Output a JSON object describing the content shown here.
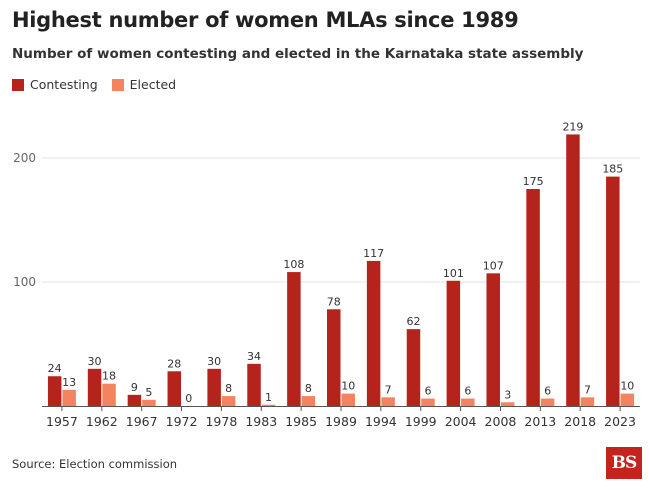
{
  "title": "Highest number of women MLAs since 1989",
  "subtitle": "Number of women contesting and elected in the Karnataka state assembly",
  "source": "Source: Election commission",
  "logo_text": "BS",
  "colors": {
    "contesting": "#b5241c",
    "elected": "#f4845f",
    "grid": "#e3e3e3",
    "axis": "#555555"
  },
  "chart_data": {
    "type": "bar",
    "title": "Highest number of women MLAs since 1989",
    "subtitle": "Number of women contesting and elected in the Karnataka state assembly",
    "xlabel": "",
    "ylabel": "",
    "ylim": [
      0,
      230
    ],
    "yticks": [
      100,
      200
    ],
    "grid": true,
    "legend_position": "top-left",
    "categories": [
      "1957",
      "1962",
      "1967",
      "1972",
      "1978",
      "1983",
      "1985",
      "1989",
      "1994",
      "1999",
      "2004",
      "2008",
      "2013",
      "2018",
      "2023"
    ],
    "series": [
      {
        "name": "Contesting",
        "values": [
          24,
          30,
          9,
          28,
          30,
          34,
          108,
          78,
          117,
          62,
          101,
          107,
          175,
          219,
          185
        ]
      },
      {
        "name": "Elected",
        "values": [
          13,
          18,
          5,
          0,
          8,
          1,
          8,
          10,
          7,
          6,
          6,
          3,
          6,
          7,
          10
        ]
      }
    ]
  }
}
